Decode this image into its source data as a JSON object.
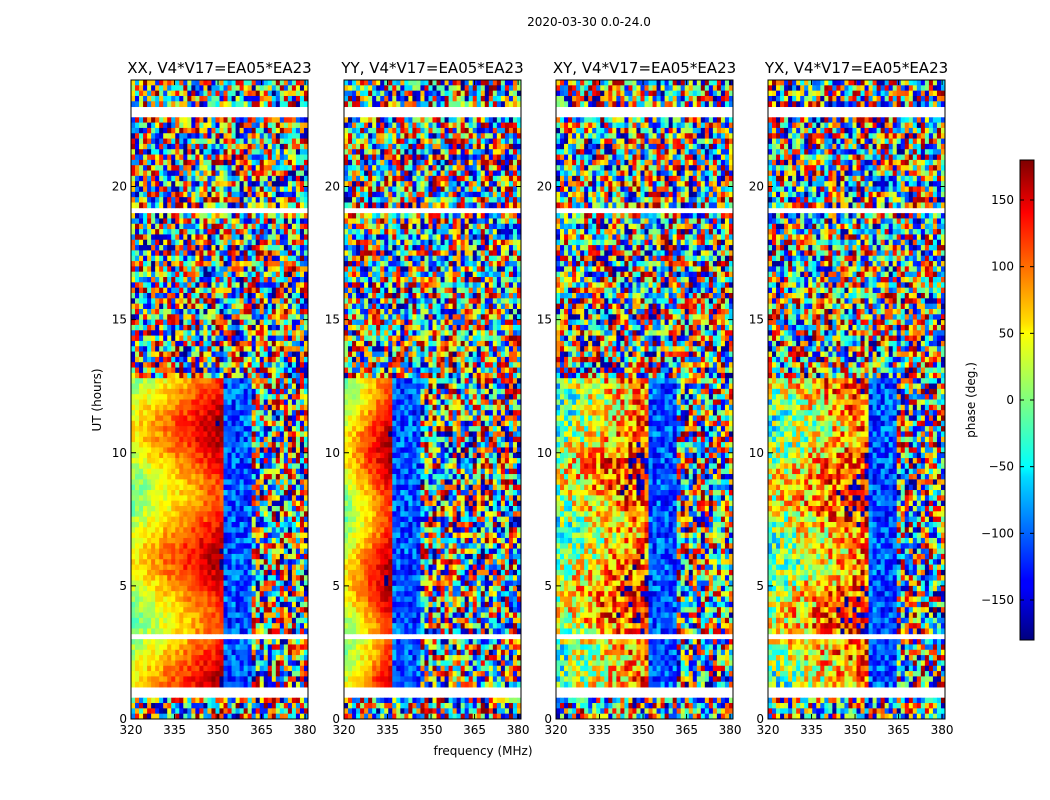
{
  "figure": {
    "suptitle": "2020-03-30 0.0-24.0"
  },
  "chart_data": [
    {
      "type": "heatmap",
      "title": "XX, V4*V17=EA05*EA23",
      "xlabel": "",
      "ylabel": "UT (hours)",
      "xlim": [
        320,
        381
      ],
      "ylim": [
        0,
        24
      ],
      "xticks": [
        320,
        335,
        350,
        365,
        380
      ],
      "yticks": [
        0,
        5,
        10,
        15,
        20
      ],
      "fringe_center_mhz": 352,
      "clim": [
        -180,
        180
      ]
    },
    {
      "type": "heatmap",
      "title": "YY, V4*V17=EA05*EA23",
      "xlabel": "frequency (MHz)",
      "ylabel": "",
      "xlim": [
        320,
        381
      ],
      "ylim": [
        0,
        24
      ],
      "xticks": [
        320,
        335,
        350,
        365,
        380
      ],
      "yticks": [
        0,
        5,
        10,
        15,
        20
      ],
      "fringe_center_mhz": 336,
      "clim": [
        -180,
        180
      ]
    },
    {
      "type": "heatmap",
      "title": "XY, V4*V17=EA05*EA23",
      "xlabel": "",
      "ylabel": "",
      "xlim": [
        320,
        381
      ],
      "ylim": [
        0,
        24
      ],
      "xticks": [
        320,
        335,
        350,
        365,
        380
      ],
      "yticks": [
        0,
        5,
        10,
        15,
        20
      ],
      "fringe_center_mhz": 352,
      "clim": [
        -180,
        180
      ]
    },
    {
      "type": "heatmap",
      "title": "YX, V4*V17=EA05*EA23",
      "xlabel": "",
      "ylabel": "",
      "xlim": [
        320,
        381
      ],
      "ylim": [
        0,
        24
      ],
      "xticks": [
        320,
        335,
        350,
        365,
        380
      ],
      "yticks": [
        0,
        5,
        10,
        15,
        20
      ],
      "fringe_center_mhz": 355,
      "clim": [
        -180,
        180
      ]
    }
  ],
  "colorbar": {
    "label": "phase (deg.)",
    "range": [
      -180,
      180
    ],
    "ticks": [
      150,
      100,
      50,
      0,
      -50,
      -100,
      -150
    ],
    "tick_labels": [
      "150",
      "100",
      "50",
      "0",
      "−50",
      "−100",
      "−150"
    ],
    "colormap": "jet"
  }
}
